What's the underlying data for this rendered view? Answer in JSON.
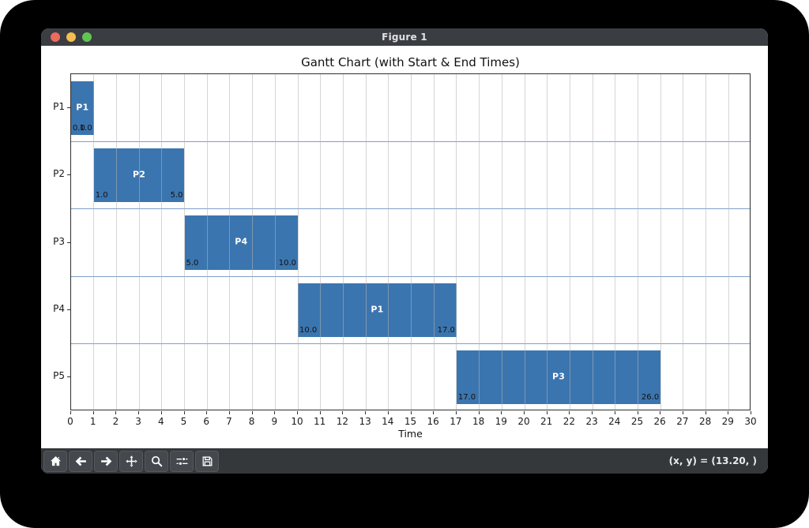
{
  "window": {
    "title": "Figure 1",
    "traffic_lights": {
      "close": "#ed6a5e",
      "minimize": "#f4bf50",
      "zoom": "#61c554"
    }
  },
  "chart_data": {
    "type": "bar",
    "subtype": "gantt-horizontal",
    "title": "Gantt Chart (with Start & End Times)",
    "xlabel": "Time",
    "xlim": [
      0,
      30
    ],
    "x_ticks": [
      0,
      1,
      2,
      3,
      4,
      5,
      6,
      7,
      8,
      9,
      10,
      11,
      12,
      13,
      14,
      15,
      16,
      17,
      18,
      19,
      20,
      21,
      22,
      23,
      24,
      25,
      26,
      27,
      28,
      29,
      30
    ],
    "rows": [
      "P1",
      "P2",
      "P3",
      "P4",
      "P5"
    ],
    "bars": [
      {
        "row": "P1",
        "process": "P1",
        "start": 0,
        "end": 1,
        "start_label": "0.0",
        "end_label": "1.0"
      },
      {
        "row": "P2",
        "process": "P2",
        "start": 1,
        "end": 5,
        "start_label": "1.0",
        "end_label": "5.0"
      },
      {
        "row": "P3",
        "process": "P4",
        "start": 5,
        "end": 10,
        "start_label": "5.0",
        "end_label": "10.0"
      },
      {
        "row": "P4",
        "process": "P1",
        "start": 10,
        "end": 17,
        "start_label": "10.0",
        "end_label": "17.0"
      },
      {
        "row": "P5",
        "process": "P3",
        "start": 17,
        "end": 26,
        "start_label": "17.0",
        "end_label": "26.0"
      }
    ],
    "bar_color": "#3b75af",
    "hgrid_color": "#7f9fca",
    "vgrid_color": "rgba(178,178,178,0.55)",
    "grid": true,
    "legend": null
  },
  "toolbar": {
    "buttons": [
      {
        "id": "home",
        "icon": "home-icon"
      },
      {
        "id": "back",
        "icon": "arrow-left-icon"
      },
      {
        "id": "forward",
        "icon": "arrow-right-icon"
      },
      {
        "id": "pan",
        "icon": "move-icon"
      },
      {
        "id": "zoom",
        "icon": "magnifier-icon"
      },
      {
        "id": "configure-subplots",
        "icon": "sliders-icon"
      },
      {
        "id": "save",
        "icon": "floppy-icon"
      }
    ],
    "status": "(x, y) = (13.20, )"
  }
}
